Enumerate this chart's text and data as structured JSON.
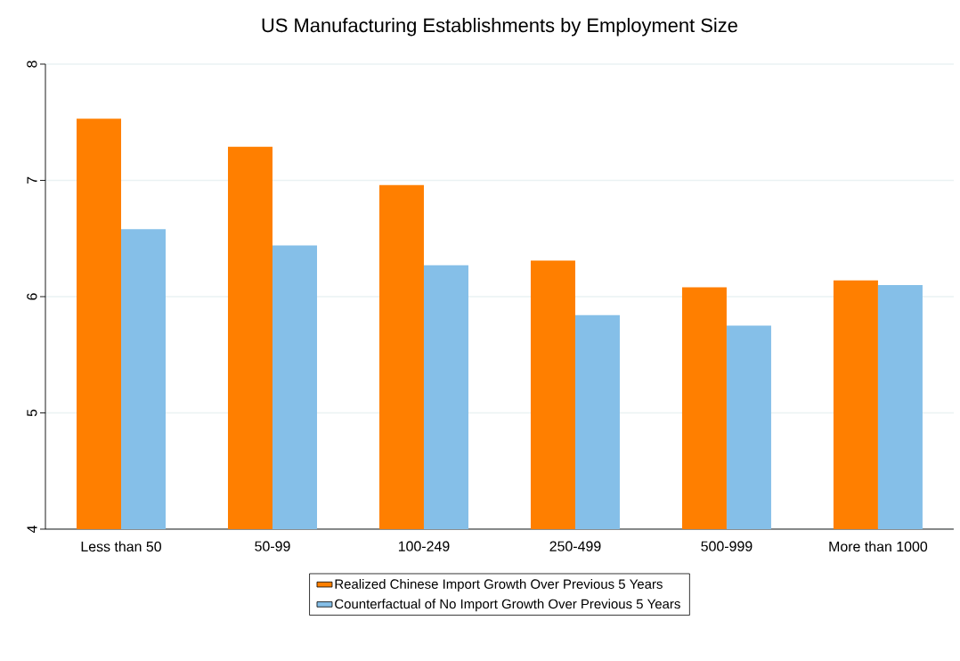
{
  "chart_data": {
    "type": "bar",
    "title": "US Manufacturing Establishments by Employment Size",
    "categories": [
      "Less than 50",
      "50-99",
      "100-249",
      "250-499",
      "500-999",
      "More than 1000"
    ],
    "series": [
      {
        "name": "Realized Chinese Import Growth Over Previous 5 Years",
        "color": "#ff7f00",
        "values": [
          7.53,
          7.29,
          6.96,
          6.31,
          6.08,
          6.14
        ]
      },
      {
        "name": "Counterfactual of No Import Growth Over Previous 5 Years",
        "color": "#85bfe8",
        "values": [
          6.58,
          6.44,
          6.27,
          5.84,
          5.75,
          6.1
        ]
      }
    ],
    "ylim": [
      4,
      8
    ],
    "yticks": [
      4,
      5,
      6,
      7,
      8
    ],
    "grid": "y",
    "legend": "bottom"
  }
}
